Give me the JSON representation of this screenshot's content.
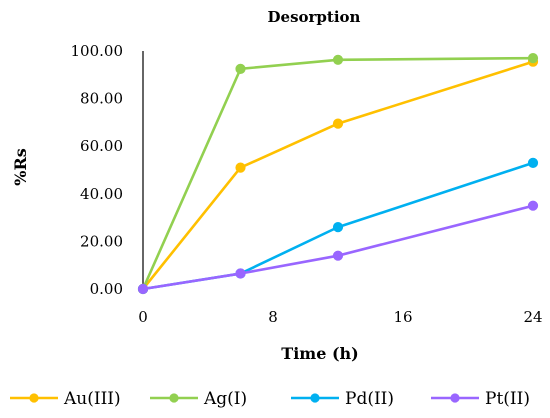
{
  "chart_data": {
    "type": "line",
    "title": "Desorption",
    "xlabel": "Time (h)",
    "ylabel": "%Rs",
    "x_ticks": [
      "0",
      "8",
      "16",
      "24"
    ],
    "y_ticks": [
      "0.00",
      "20.00",
      "40.00",
      "60.00",
      "80.00",
      "100.00"
    ],
    "xlim": [
      0,
      24
    ],
    "ylim": [
      0,
      100
    ],
    "grid": false,
    "legend_position": "bottom",
    "series": [
      {
        "name": "Au(III)",
        "color": "#FFC000",
        "x": [
          0,
          6,
          12,
          24
        ],
        "y": [
          0,
          51,
          69.5,
          95.5
        ]
      },
      {
        "name": "Ag(I)",
        "color": "#92D050",
        "x": [
          0,
          6,
          12,
          24
        ],
        "y": [
          0,
          92.5,
          96.3,
          97
        ]
      },
      {
        "name": "Pd(II)",
        "color": "#00B0F0",
        "x": [
          0,
          6,
          12,
          24
        ],
        "y": [
          0,
          6.5,
          26,
          53
        ]
      },
      {
        "name": "Pt(II)",
        "color": "#9966FF",
        "x": [
          0,
          6,
          12,
          24
        ],
        "y": [
          0,
          6.5,
          14,
          35
        ]
      }
    ]
  }
}
